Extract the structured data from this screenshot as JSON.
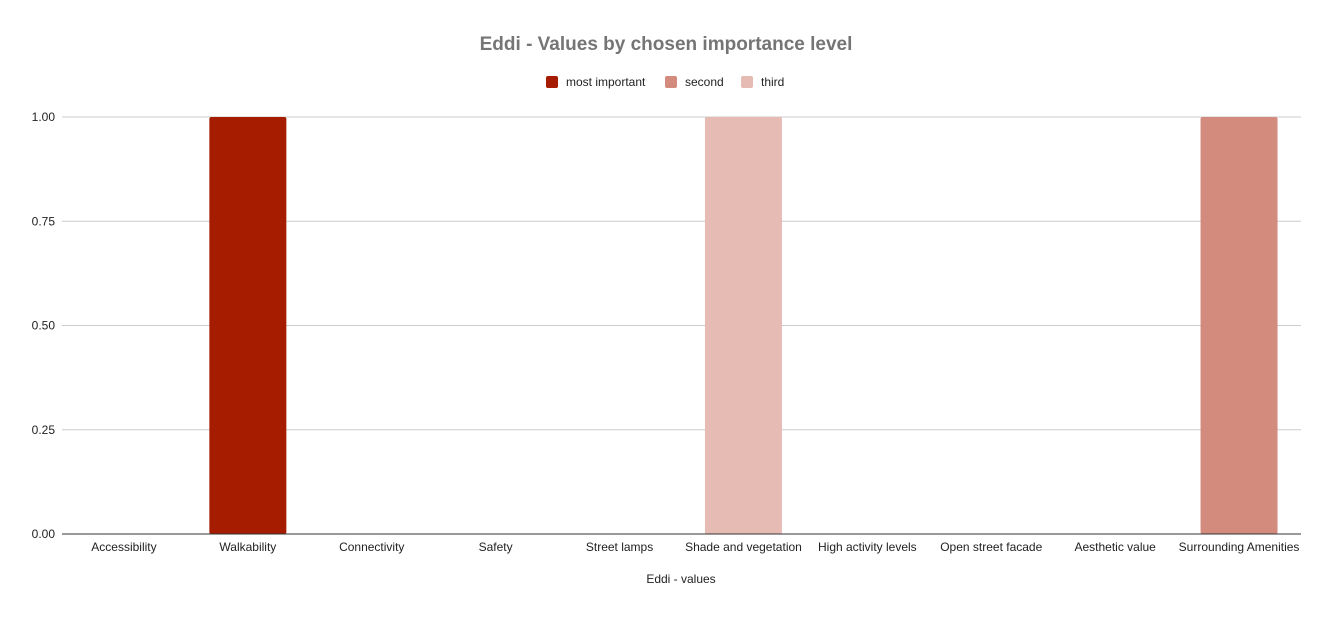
{
  "chart_data": {
    "type": "bar",
    "title": "Eddi - Values by chosen importance level",
    "xlabel": "Eddi - values",
    "ylabel": "",
    "ylim": [
      0,
      1
    ],
    "yticks": [
      "0.00",
      "0.25",
      "0.50",
      "0.75",
      "1.00"
    ],
    "grid": true,
    "legend_position": "top",
    "categories": [
      "Accessibility",
      "Walkability",
      "Connectivity",
      "Safety",
      "Street lamps",
      "Shade and vegetation",
      "High activity levels",
      "Open street facade",
      "Aesthetic value",
      "Surrounding Amenities"
    ],
    "series": [
      {
        "name": "most important",
        "color": "#a61c00",
        "values": [
          0,
          1,
          0,
          0,
          0,
          0,
          0,
          0,
          0,
          0
        ]
      },
      {
        "name": "second",
        "color": "#d38b7d",
        "values": [
          0,
          0,
          0,
          0,
          0,
          0,
          0,
          0,
          0,
          1
        ]
      },
      {
        "name": "third",
        "color": "#e6bbb4",
        "values": [
          0,
          0,
          0,
          0,
          0,
          1,
          0,
          0,
          0,
          0
        ]
      }
    ]
  }
}
